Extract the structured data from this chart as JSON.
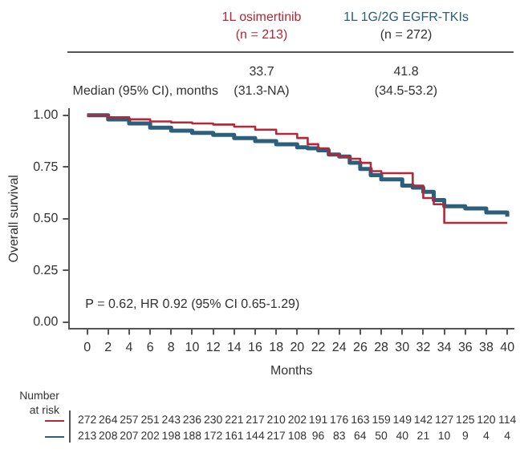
{
  "chart_data": {
    "type": "step",
    "xlabel": "Months",
    "ylabel": "Overall survival",
    "x": [
      0,
      2,
      4,
      6,
      8,
      10,
      12,
      14,
      16,
      18,
      20,
      21,
      22,
      23,
      24,
      25,
      26,
      27,
      28,
      30,
      31,
      32,
      33,
      34,
      36,
      38,
      40
    ],
    "series": [
      {
        "name": "1L osimertinib",
        "color": "#b5283a",
        "values": [
          1.0,
          0.99,
          0.98,
          0.97,
          0.965,
          0.96,
          0.955,
          0.945,
          0.93,
          0.91,
          0.89,
          0.86,
          0.84,
          0.81,
          0.8,
          0.79,
          0.77,
          0.73,
          0.72,
          0.72,
          0.66,
          0.6,
          0.57,
          0.48,
          0.48,
          0.48,
          0.48
        ]
      },
      {
        "name": "1L 1G/2G EGFR-TKIs",
        "color": "#2c5f7c",
        "values": [
          1.0,
          0.98,
          0.96,
          0.94,
          0.925,
          0.915,
          0.905,
          0.89,
          0.875,
          0.86,
          0.845,
          0.84,
          0.83,
          0.81,
          0.8,
          0.77,
          0.74,
          0.71,
          0.69,
          0.66,
          0.65,
          0.63,
          0.59,
          0.56,
          0.55,
          0.53,
          0.51
        ]
      }
    ],
    "xlim": [
      -1.7,
      40.6
    ],
    "xticks": [
      0,
      2,
      4,
      6,
      8,
      10,
      12,
      14,
      16,
      18,
      20,
      22,
      24,
      26,
      28,
      30,
      32,
      34,
      36,
      38,
      40
    ],
    "ylim": [
      -0.03,
      1.03
    ],
    "yticks": [
      {
        "value": 0,
        "label": "0.00"
      },
      {
        "value": 0.25,
        "label": "0.25"
      },
      {
        "value": 0.5,
        "label": "0.50"
      },
      {
        "value": 0.75,
        "label": "0.75"
      },
      {
        "value": 1,
        "label": "1.00"
      }
    ],
    "grid": false,
    "legend": "top",
    "marker": "none",
    "line_style": "solid",
    "annotations": [
      "(n = 213)",
      "(n = 272)",
      "Median (95% CI), months",
      "33.7",
      "(31.3-NA)",
      "41.8",
      "(34.5-53.2)",
      "P = 0.62, HR 0.92 (95% CI 0.65-1.29)",
      "Number at risk",
      "272 264 257 251 243 236 230 221 217 210 202 191 176 163 159 149 142 127 125 120 114",
      "213 208 207 202 198 188 172 161 144 217 108 96 83 64 50 40 21 10 9 4 4"
    ]
  }
}
